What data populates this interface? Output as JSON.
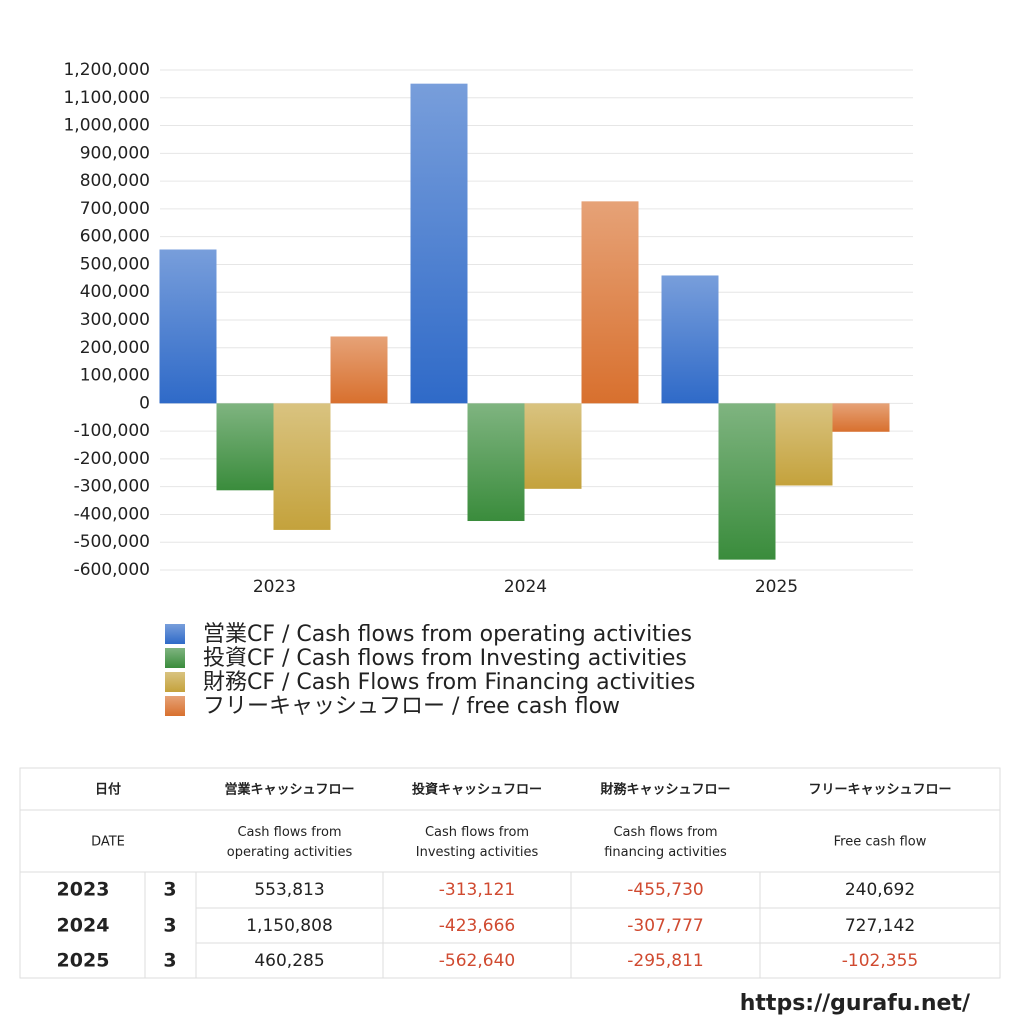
{
  "chart_data": {
    "type": "bar",
    "categories": [
      "2023",
      "2024",
      "2025"
    ],
    "series": [
      {
        "name": "営業CF / Cash flows from operating activities",
        "color": "#2f6ac8",
        "values": [
          553813,
          1150808,
          460285
        ]
      },
      {
        "name": "投資CF / Cash flows from Investing activities",
        "color": "#3a8c3c",
        "values": [
          -313121,
          -423666,
          -562640
        ]
      },
      {
        "name": "財務CF / Cash Flows from Financing activities",
        "color": "#c4a23c",
        "values": [
          -455730,
          -307777,
          -295811
        ]
      },
      {
        "name": "フリーキャッシュフロー / free cash flow",
        "color": "#d8702e",
        "values": [
          240692,
          727142,
          -102355
        ]
      }
    ],
    "ylim": [
      -600000,
      1200000
    ],
    "yticks": [
      {
        "value": -600000,
        "label": "-600,000"
      },
      {
        "value": -500000,
        "label": "-500,000"
      },
      {
        "value": -400000,
        "label": "-400,000"
      },
      {
        "value": -300000,
        "label": "-300,000"
      },
      {
        "value": -200000,
        "label": "-200,000"
      },
      {
        "value": -100000,
        "label": "-100,000"
      },
      0,
      {
        "value": 100000,
        "label": "100,000"
      },
      {
        "value": 200000,
        "label": "200,000"
      },
      {
        "value": 300000,
        "label": "300,000"
      },
      {
        "value": 400000,
        "label": "400,000"
      },
      {
        "value": 500000,
        "label": "500,000"
      },
      {
        "value": 600000,
        "label": "600,000"
      },
      {
        "value": 700000,
        "label": "700,000"
      },
      {
        "value": 800000,
        "label": "800,000"
      },
      {
        "value": 900000,
        "label": "900,000"
      },
      {
        "value": 1000000,
        "label": "1,000,000"
      },
      {
        "value": 1100000,
        "label": "1,100,000"
      },
      {
        "value": 1200000,
        "label": "1,200,000"
      }
    ],
    "grid": true
  },
  "table": {
    "header": [
      "日付",
      "営業キャッシュフロー",
      "投資キャッシュフロー",
      "財務キャッシュフロー",
      "フリーキャッシュフロー"
    ],
    "subheader": [
      "DATE",
      "Cash flows from operating activities",
      "Cash flows from Investing activities",
      "Cash flows from financing activities",
      "Free cash flow"
    ],
    "rows": [
      [
        "2023",
        "3",
        "553,813",
        "-313,121",
        "-455,730",
        "240,692"
      ],
      [
        "2024",
        "3",
        "1,150,808",
        "-423,666",
        "-307,777",
        "727,142"
      ],
      [
        "2025",
        "3",
        "460,285",
        "-562,640",
        "-295,811",
        "-102,355"
      ]
    ]
  },
  "footer": "https://gurafu.net/"
}
